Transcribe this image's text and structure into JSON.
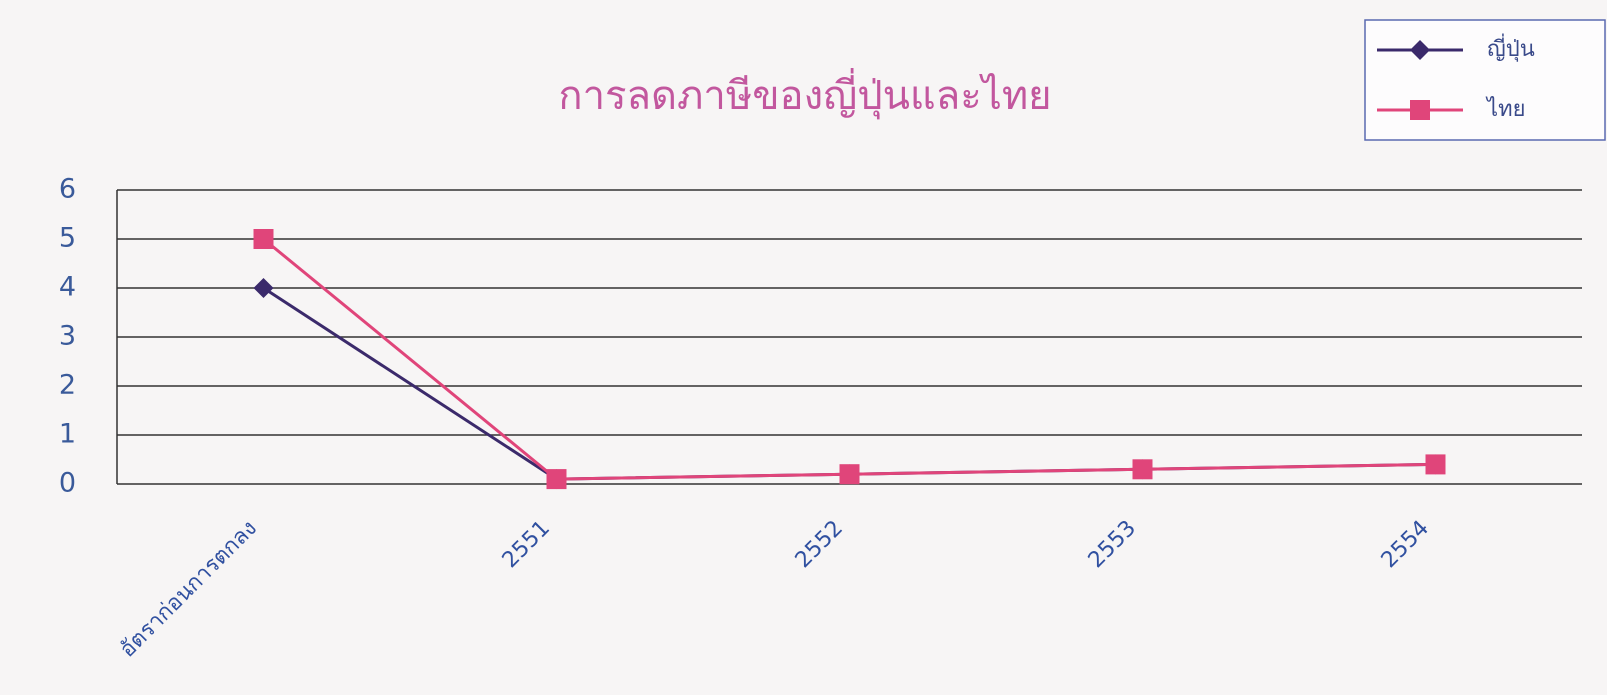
{
  "chart_data": {
    "type": "line",
    "title": "การลดภาษีของญี่ปุ่นและไทย",
    "categories": [
      "อัตราก่อนการตกลง",
      "2551",
      "2552",
      "2553",
      "2554"
    ],
    "series": [
      {
        "name": "ญี่ปุ่น",
        "color": "#3b2a6b",
        "marker": "diamond",
        "values": [
          4,
          0.1,
          0.2,
          0.3,
          0.4
        ]
      },
      {
        "name": "ไทย",
        "color": "#e0457a",
        "marker": "square",
        "values": [
          5,
          0.1,
          0.2,
          0.3,
          0.4
        ]
      }
    ],
    "ylim": [
      0,
      6
    ],
    "yticks": [
      0,
      1,
      2,
      3,
      4,
      5,
      6
    ],
    "grid": true,
    "legend": "top-right"
  }
}
